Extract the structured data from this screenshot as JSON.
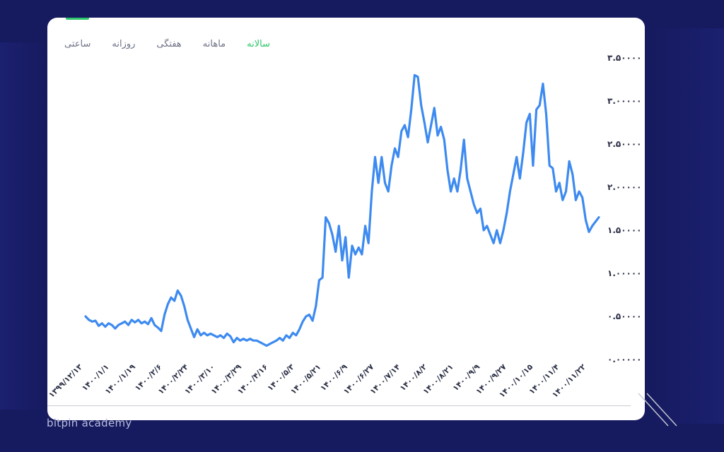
{
  "tabs": [
    {
      "label": "سالانه",
      "active": true
    },
    {
      "label": "ماهانه",
      "active": false
    },
    {
      "label": "هفتگی",
      "active": false
    },
    {
      "label": "روزانه",
      "active": false
    },
    {
      "label": "ساعتی",
      "active": false
    }
  ],
  "watermark": "bitpin academy",
  "colors": {
    "line": "#3d8af0",
    "active_tab": "#2ec66b",
    "background": "#161a5e"
  },
  "chart_data": {
    "type": "line",
    "title": "",
    "xlabel": "",
    "ylabel": "",
    "ylim": [
      0,
      3.5
    ],
    "y_ticks": [
      {
        "value": 0,
        "label": "۰.۰۰۰۰۰"
      },
      {
        "value": 0.5,
        "label": "۰.۵۰۰۰۰"
      },
      {
        "value": 1,
        "label": "۱.۰۰۰۰۰"
      },
      {
        "value": 1.5,
        "label": "۱.۵۰۰۰۰"
      },
      {
        "value": 2,
        "label": "۲.۰۰۰۰۰"
      },
      {
        "value": 2.5,
        "label": "۲.۵۰۰۰۰"
      },
      {
        "value": 3,
        "label": "۳.۰۰۰۰۰"
      },
      {
        "value": 3.5,
        "label": "۳.۵۰۰۰۰"
      }
    ],
    "x_tick_labels": [
      "۱۳۹۹/۱۲/۱۳",
      "۱۴۰۰/۱/۱",
      "۱۴۰۰/۱/۱۹",
      "۱۴۰۰/۲/۶",
      "۱۴۰۰/۲/۲۴",
      "۱۴۰۰/۳/۱۰",
      "۱۴۰۰/۳/۲۹",
      "۱۴۰۰/۴/۱۶",
      "۱۴۰۰/۵/۳",
      "۱۴۰۰/۵/۲۱",
      "۱۴۰۰/۶/۹",
      "۱۴۰۰/۶/۲۷",
      "۱۴۰۰/۷/۱۴",
      "۱۴۰۰/۸/۲",
      "۱۴۰۰/۸/۲۱",
      "۱۴۰۰/۹/۹",
      "۱۴۰۰/۹/۲۷",
      "۱۴۰۰/۱۰/۱۵",
      "۱۴۰۰/۱۱/۴",
      "۱۴۰۰/۱۱/۲۲"
    ],
    "series": [
      {
        "values": [
          0.5,
          0.46,
          0.44,
          0.45,
          0.39,
          0.42,
          0.38,
          0.42,
          0.4,
          0.36,
          0.4,
          0.42,
          0.44,
          0.4,
          0.46,
          0.43,
          0.46,
          0.42,
          0.44,
          0.41,
          0.48,
          0.4,
          0.37,
          0.33,
          0.52,
          0.64,
          0.72,
          0.68,
          0.8,
          0.74,
          0.62,
          0.46,
          0.36,
          0.26,
          0.35,
          0.28,
          0.31,
          0.28,
          0.3,
          0.28,
          0.26,
          0.28,
          0.25,
          0.3,
          0.27,
          0.2,
          0.25,
          0.22,
          0.24,
          0.22,
          0.24,
          0.22,
          0.22,
          0.2,
          0.18,
          0.16,
          0.18,
          0.2,
          0.22,
          0.25,
          0.22,
          0.28,
          0.25,
          0.31,
          0.28,
          0.35,
          0.44,
          0.5,
          0.52,
          0.45,
          0.62,
          0.92,
          0.95,
          1.65,
          1.58,
          1.45,
          1.25,
          1.55,
          1.15,
          1.42,
          0.95,
          1.32,
          1.22,
          1.3,
          1.22,
          1.55,
          1.35,
          1.95,
          2.35,
          2.05,
          2.35,
          2.05,
          1.95,
          2.25,
          2.45,
          2.35,
          2.65,
          2.72,
          2.58,
          2.9,
          3.3,
          3.28,
          2.95,
          2.75,
          2.52,
          2.72,
          2.92,
          2.6,
          2.7,
          2.55,
          2.2,
          1.95,
          2.1,
          1.95,
          2.2,
          2.55,
          2.1,
          1.95,
          1.8,
          1.7,
          1.75,
          1.5,
          1.55,
          1.45,
          1.35,
          1.5,
          1.35,
          1.5,
          1.7,
          1.95,
          2.15,
          2.35,
          2.1,
          2.4,
          2.75,
          2.85,
          2.25,
          2.9,
          2.95,
          3.2,
          2.85,
          2.25,
          2.22,
          1.95,
          2.05,
          1.85,
          1.95,
          2.3,
          2.15,
          1.85,
          1.95,
          1.88,
          1.62,
          1.48,
          1.55,
          1.6,
          1.65
        ]
      }
    ]
  }
}
